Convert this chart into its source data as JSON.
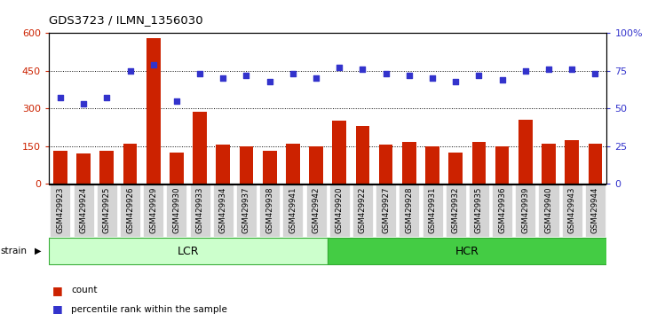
{
  "title": "GDS3723 / ILMN_1356030",
  "categories": [
    "GSM429923",
    "GSM429924",
    "GSM429925",
    "GSM429926",
    "GSM429929",
    "GSM429930",
    "GSM429933",
    "GSM429934",
    "GSM429937",
    "GSM429938",
    "GSM429941",
    "GSM429942",
    "GSM429920",
    "GSM429922",
    "GSM429927",
    "GSM429928",
    "GSM429931",
    "GSM429932",
    "GSM429935",
    "GSM429936",
    "GSM429939",
    "GSM429940",
    "GSM429943",
    "GSM429944"
  ],
  "counts": [
    130,
    120,
    130,
    160,
    580,
    125,
    285,
    155,
    148,
    130,
    160,
    148,
    250,
    230,
    155,
    165,
    148,
    125,
    165,
    148,
    255,
    160,
    175,
    160
  ],
  "percentile": [
    57,
    53,
    57,
    75,
    79,
    55,
    73,
    70,
    72,
    68,
    73,
    70,
    77,
    76,
    73,
    72,
    70,
    68,
    72,
    69,
    75,
    76,
    76,
    73
  ],
  "lcr_count": 12,
  "hcr_count": 12,
  "ylim_left": [
    0,
    600
  ],
  "ylim_right": [
    0,
    100
  ],
  "yticks_left": [
    0,
    150,
    300,
    450,
    600
  ],
  "yticks_right": [
    0,
    25,
    50,
    75,
    100
  ],
  "bar_color": "#cc2200",
  "dot_color": "#3333cc",
  "lcr_color": "#ccffcc",
  "hcr_color": "#44cc44",
  "label_color_left": "#cc2200",
  "label_color_right": "#3333cc",
  "fig_bg": "#ffffff",
  "strain_label": "strain",
  "lcr_label": "LCR",
  "hcr_label": "HCR",
  "legend_count": "count",
  "legend_pct": "percentile rank within the sample"
}
